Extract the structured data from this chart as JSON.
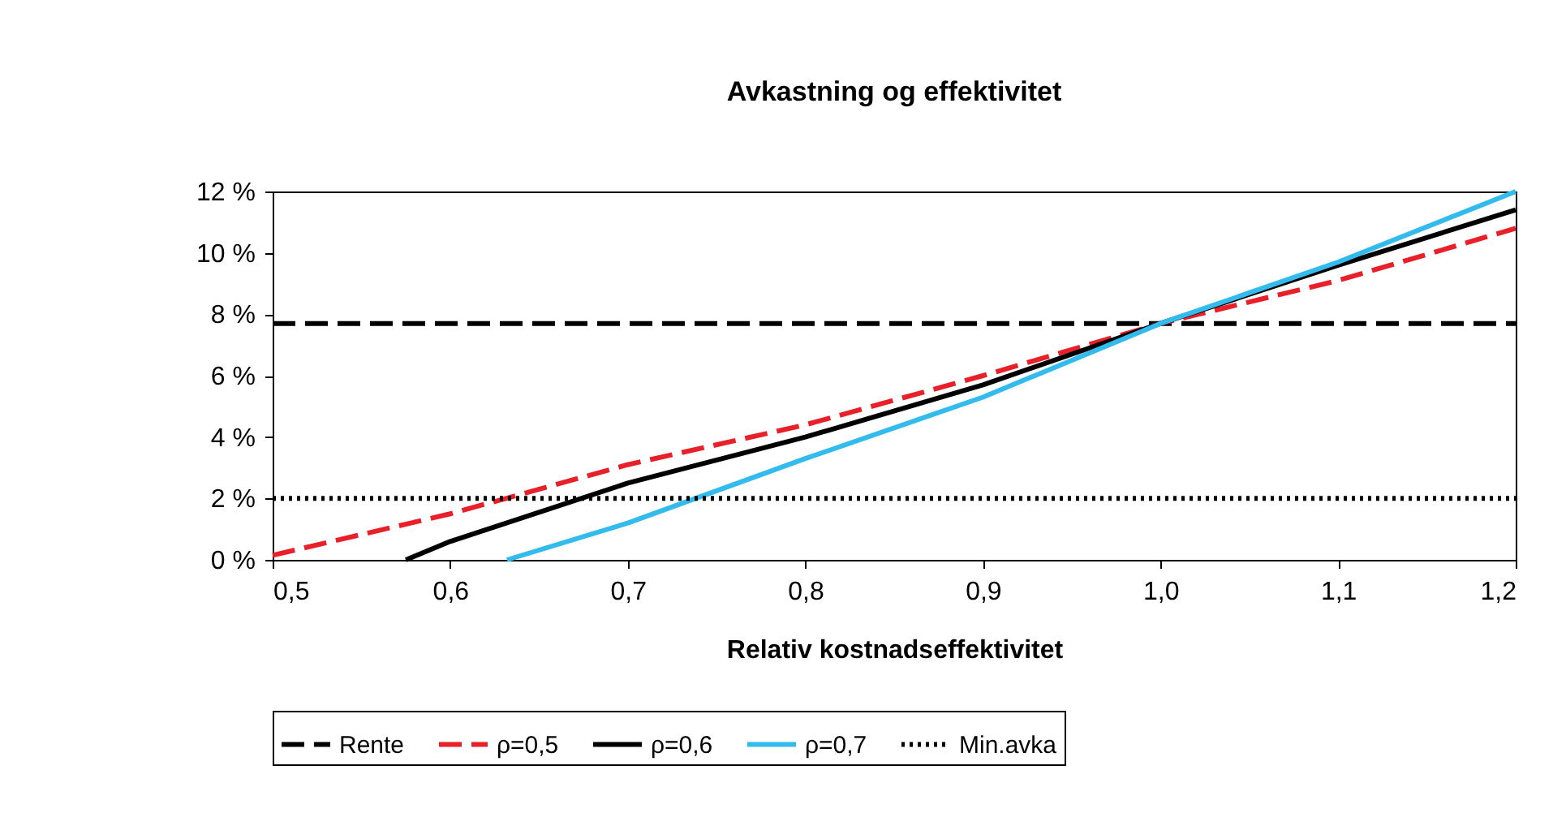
{
  "chart_data": {
    "type": "line",
    "title": "Avkastning og effektivitet",
    "xlabel": "Relativ kostnadseffektivitet",
    "xlim": [
      0.5,
      1.2
    ],
    "xticks": [
      {
        "value": 0.5,
        "label": "0,5"
      },
      {
        "value": 0.6,
        "label": "0,6"
      },
      {
        "value": 0.7,
        "label": "0,7"
      },
      {
        "value": 0.8,
        "label": "0,8"
      },
      {
        "value": 0.9,
        "label": "0,9"
      },
      {
        "value": 1.0,
        "label": "1,0"
      },
      {
        "value": 1.1,
        "label": "1,1"
      },
      {
        "value": 1.2,
        "label": "1,2"
      }
    ],
    "ylim": [
      0,
      12
    ],
    "yticks": [
      {
        "value": 0,
        "label": "0 %"
      },
      {
        "value": 2,
        "label": "2 %"
      },
      {
        "value": 4,
        "label": "4 %"
      },
      {
        "value": 6,
        "label": "6 %"
      },
      {
        "value": 8,
        "label": "8 %"
      },
      {
        "value": 10,
        "label": "10 %"
      },
      {
        "value": 12,
        "label": "12 %"
      }
    ],
    "grid": false,
    "legend": "bottom",
    "marker": "none",
    "series": [
      {
        "name": "Rente",
        "color": "#000000",
        "line_style": "dashed",
        "x": [
          0.5,
          1.2
        ],
        "values": [
          7.7,
          7.7
        ]
      },
      {
        "name": "ρ=0,5",
        "color": "#e8202a",
        "line_style": "dashed",
        "x": [
          0.5,
          0.6,
          0.7,
          0.8,
          0.9,
          1.0,
          1.1,
          1.2
        ],
        "values": [
          0.15,
          1.5,
          3.1,
          4.4,
          6.0,
          7.7,
          9.1,
          10.8
        ]
      },
      {
        "name": "ρ=0,6",
        "color": "#000000",
        "line_style": "solid",
        "x": [
          0.575,
          0.6,
          0.7,
          0.8,
          0.9,
          1.0,
          1.1,
          1.2
        ],
        "values": [
          0,
          0.6,
          2.5,
          4.0,
          5.7,
          7.7,
          9.6,
          11.4
        ]
      },
      {
        "name": "ρ=0,7",
        "color": "#33bbee",
        "line_style": "solid",
        "x": [
          0.632,
          0.7,
          0.8,
          0.9,
          1.0,
          1.1,
          1.2
        ],
        "values": [
          0,
          1.2,
          3.3,
          5.3,
          7.7,
          9.7,
          12
        ]
      },
      {
        "name": "Min.avka",
        "color": "#000000",
        "line_style": "dotted",
        "x": [
          0.5,
          1.2
        ],
        "values": [
          2,
          2
        ]
      }
    ]
  }
}
